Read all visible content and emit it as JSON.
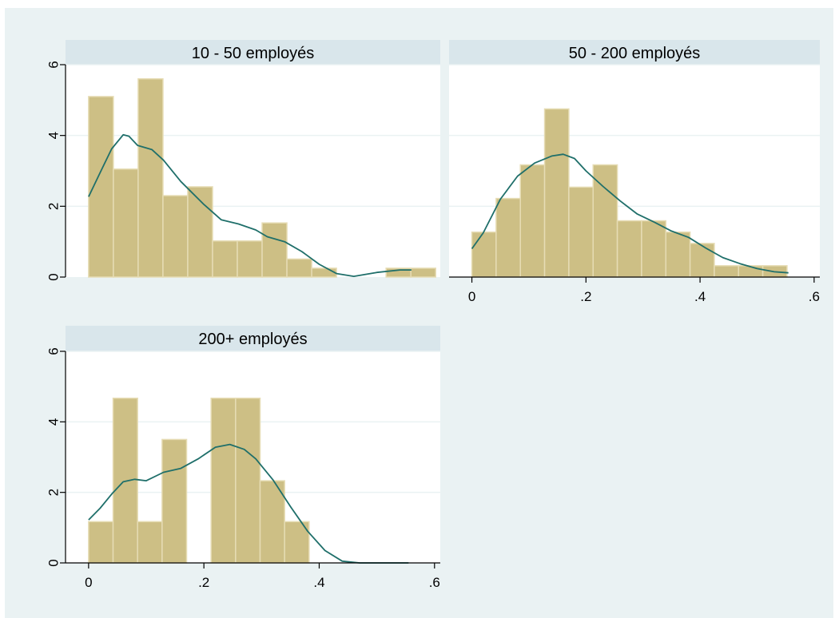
{
  "colors": {
    "background": "#eaf2f3",
    "plot_area": "#ffffff",
    "strip": "#d9e6eb",
    "bar_fill": "#cdbf85",
    "bar_edge": "#e6dcb4",
    "density_line": "#1f6f6a",
    "grid": "#eaf2f3",
    "axis": "#000000"
  },
  "chart_data": [
    {
      "type": "bar",
      "title": "10 - 50 employés",
      "xlim": [
        -0.04,
        0.61
      ],
      "ylim": [
        0,
        6
      ],
      "yticks": [
        0,
        2,
        4,
        6
      ],
      "xticks": [],
      "bin_width": 0.043,
      "bins": [
        {
          "x0": 0.0,
          "x1": 0.043,
          "y": 5.1
        },
        {
          "x0": 0.043,
          "x1": 0.086,
          "y": 3.05
        },
        {
          "x0": 0.086,
          "x1": 0.129,
          "y": 5.6
        },
        {
          "x0": 0.129,
          "x1": 0.172,
          "y": 2.3
        },
        {
          "x0": 0.172,
          "x1": 0.215,
          "y": 2.55
        },
        {
          "x0": 0.215,
          "x1": 0.258,
          "y": 1.02
        },
        {
          "x0": 0.258,
          "x1": 0.301,
          "y": 1.02
        },
        {
          "x0": 0.301,
          "x1": 0.344,
          "y": 1.53
        },
        {
          "x0": 0.344,
          "x1": 0.387,
          "y": 0.51
        },
        {
          "x0": 0.387,
          "x1": 0.43,
          "y": 0.25
        },
        {
          "x0": 0.516,
          "x1": 0.559,
          "y": 0.25
        },
        {
          "x0": 0.559,
          "x1": 0.602,
          "y": 0.25
        }
      ],
      "density": [
        [
          0.0,
          2.27
        ],
        [
          0.02,
          2.95
        ],
        [
          0.04,
          3.62
        ],
        [
          0.06,
          4.02
        ],
        [
          0.07,
          3.98
        ],
        [
          0.085,
          3.72
        ],
        [
          0.11,
          3.6
        ],
        [
          0.13,
          3.3
        ],
        [
          0.16,
          2.7
        ],
        [
          0.2,
          2.05
        ],
        [
          0.23,
          1.62
        ],
        [
          0.26,
          1.5
        ],
        [
          0.29,
          1.33
        ],
        [
          0.31,
          1.14
        ],
        [
          0.34,
          1.0
        ],
        [
          0.37,
          0.72
        ],
        [
          0.4,
          0.36
        ],
        [
          0.43,
          0.1
        ],
        [
          0.46,
          0.02
        ],
        [
          0.5,
          0.13
        ],
        [
          0.54,
          0.2
        ],
        [
          0.56,
          0.2
        ]
      ]
    },
    {
      "type": "bar",
      "title": "50 - 200 employés",
      "xlim": [
        -0.04,
        0.61
      ],
      "ylim": [
        0,
        6
      ],
      "yticks": [],
      "xticks": [
        {
          "value": 0,
          "label": "0"
        },
        {
          "value": 0.2,
          "label": ".2"
        },
        {
          "value": 0.4,
          "label": ".4"
        },
        {
          "value": 0.6,
          "label": ".6"
        }
      ],
      "bin_width": 0.0425,
      "bins": [
        {
          "x0": 0.0,
          "x1": 0.0425,
          "y": 1.27
        },
        {
          "x0": 0.0425,
          "x1": 0.085,
          "y": 2.22
        },
        {
          "x0": 0.085,
          "x1": 0.1275,
          "y": 3.17
        },
        {
          "x0": 0.1275,
          "x1": 0.17,
          "y": 4.75
        },
        {
          "x0": 0.17,
          "x1": 0.2125,
          "y": 2.54
        },
        {
          "x0": 0.2125,
          "x1": 0.255,
          "y": 3.17
        },
        {
          "x0": 0.255,
          "x1": 0.2975,
          "y": 1.59
        },
        {
          "x0": 0.2975,
          "x1": 0.34,
          "y": 1.59
        },
        {
          "x0": 0.34,
          "x1": 0.3825,
          "y": 1.27
        },
        {
          "x0": 0.3825,
          "x1": 0.425,
          "y": 0.95
        },
        {
          "x0": 0.425,
          "x1": 0.4675,
          "y": 0.32
        },
        {
          "x0": 0.4675,
          "x1": 0.51,
          "y": 0.32
        },
        {
          "x0": 0.51,
          "x1": 0.5525,
          "y": 0.32
        }
      ],
      "density": [
        [
          0.0,
          0.8
        ],
        [
          0.02,
          1.25
        ],
        [
          0.05,
          2.2
        ],
        [
          0.08,
          2.85
        ],
        [
          0.11,
          3.22
        ],
        [
          0.14,
          3.42
        ],
        [
          0.16,
          3.47
        ],
        [
          0.18,
          3.35
        ],
        [
          0.2,
          3.0
        ],
        [
          0.23,
          2.56
        ],
        [
          0.26,
          2.15
        ],
        [
          0.29,
          1.78
        ],
        [
          0.32,
          1.55
        ],
        [
          0.35,
          1.3
        ],
        [
          0.38,
          1.12
        ],
        [
          0.41,
          0.82
        ],
        [
          0.44,
          0.55
        ],
        [
          0.47,
          0.38
        ],
        [
          0.5,
          0.24
        ],
        [
          0.53,
          0.15
        ],
        [
          0.555,
          0.12
        ]
      ]
    },
    {
      "type": "bar",
      "title": "200+ employés",
      "xlim": [
        -0.04,
        0.61
      ],
      "ylim": [
        0,
        6
      ],
      "yticks": [
        0,
        2,
        4,
        6
      ],
      "xticks": [
        {
          "value": 0,
          "label": "0"
        },
        {
          "value": 0.2,
          "label": ".2"
        },
        {
          "value": 0.4,
          "label": ".4"
        },
        {
          "value": 0.6,
          "label": ".6"
        }
      ],
      "bin_width": 0.0425,
      "bins": [
        {
          "x0": 0.0,
          "x1": 0.0425,
          "y": 1.17
        },
        {
          "x0": 0.0425,
          "x1": 0.085,
          "y": 4.67
        },
        {
          "x0": 0.085,
          "x1": 0.1275,
          "y": 1.17
        },
        {
          "x0": 0.1275,
          "x1": 0.17,
          "y": 3.5
        },
        {
          "x0": 0.2125,
          "x1": 0.255,
          "y": 4.67
        },
        {
          "x0": 0.255,
          "x1": 0.2975,
          "y": 4.67
        },
        {
          "x0": 0.2975,
          "x1": 0.34,
          "y": 2.33
        },
        {
          "x0": 0.34,
          "x1": 0.3825,
          "y": 1.17
        }
      ],
      "density": [
        [
          0.0,
          1.22
        ],
        [
          0.02,
          1.55
        ],
        [
          0.04,
          1.95
        ],
        [
          0.06,
          2.3
        ],
        [
          0.08,
          2.37
        ],
        [
          0.1,
          2.33
        ],
        [
          0.13,
          2.57
        ],
        [
          0.16,
          2.68
        ],
        [
          0.19,
          2.95
        ],
        [
          0.22,
          3.28
        ],
        [
          0.245,
          3.36
        ],
        [
          0.27,
          3.22
        ],
        [
          0.29,
          2.95
        ],
        [
          0.32,
          2.35
        ],
        [
          0.35,
          1.6
        ],
        [
          0.38,
          0.9
        ],
        [
          0.41,
          0.35
        ],
        [
          0.44,
          0.05
        ],
        [
          0.47,
          0.0
        ],
        [
          0.5,
          0.0
        ],
        [
          0.53,
          0.0
        ],
        [
          0.555,
          0.0
        ]
      ]
    }
  ]
}
